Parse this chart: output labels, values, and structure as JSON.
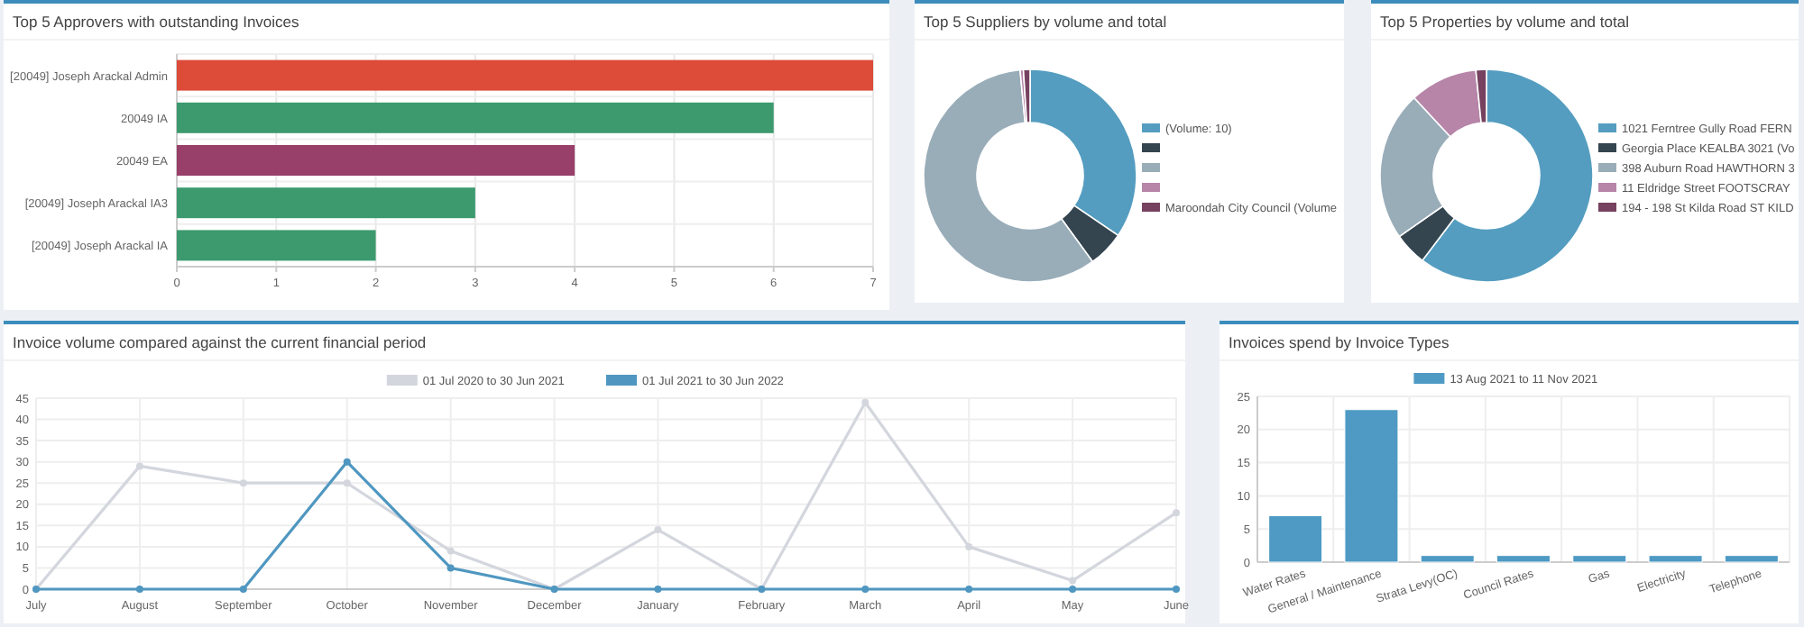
{
  "chart_data": [
    {
      "type": "bar",
      "orientation": "horizontal",
      "title": "Top 5 Approvers with outstanding Invoices",
      "categories": [
        "[20049] Joseph Arackal Admin",
        "20049 IA",
        "20049 EA",
        "[20049] Joseph Arackal IA3",
        "[20049] Joseph Arackal IA"
      ],
      "values": [
        7,
        6,
        4,
        3,
        2
      ],
      "colors": [
        "#dd4b39",
        "#3c9a6e",
        "#983f6a",
        "#3c9a6e",
        "#3c9a6e"
      ],
      "xlim": [
        0,
        7
      ],
      "xticks": [
        0,
        1,
        2,
        3,
        4,
        5,
        6,
        7
      ],
      "grid": true
    },
    {
      "type": "donut",
      "title": "Top 5 Suppliers by volume and total",
      "categories": [
        "(Volume: 10)",
        null,
        null,
        null,
        "Maroondah City Council (Volume"
      ],
      "values": [
        34.5,
        5.5,
        58.5,
        0.5,
        1.0
      ],
      "colors": [
        "#549dc0",
        "#344550",
        "#99adb9",
        "#b685a8",
        "#76425f"
      ],
      "legend": "right"
    },
    {
      "type": "donut",
      "title": "Top 5 Properties by volume and total",
      "categories": [
        "1021 Ferntree Gully Road FERN",
        "Georgia Place KEALBA 3021 (Vo",
        "398 Auburn Road HAWTHORN 3",
        "11 Eldridge Street FOOTSCRAY",
        "194 - 198 St Kilda Road ST KILD"
      ],
      "values": [
        60.3,
        5.0,
        22.8,
        10.3,
        1.6
      ],
      "colors": [
        "#549dc0",
        "#344550",
        "#99adb9",
        "#b685a8",
        "#76425f"
      ],
      "legend": "right"
    },
    {
      "type": "line",
      "title": "Invoice volume compared against the current financial period",
      "categories": [
        "July",
        "August",
        "September",
        "October",
        "November",
        "December",
        "January",
        "February",
        "March",
        "April",
        "May",
        "June"
      ],
      "series": [
        {
          "name": "01 Jul 2020 to 30 Jun 2021",
          "color": "#d4d6de",
          "values": [
            0,
            29,
            25,
            25,
            9,
            0,
            14,
            0,
            44,
            10,
            2,
            18
          ]
        },
        {
          "name": "01 Jul 2021 to 30 Jun 2022",
          "color": "#4f97c0",
          "values": [
            0,
            0,
            0,
            30,
            5,
            0,
            0,
            0,
            0,
            0,
            0,
            0
          ]
        }
      ],
      "ylim": [
        0,
        45
      ],
      "yticks": [
        0,
        5,
        10,
        15,
        20,
        25,
        30,
        35,
        40,
        45
      ],
      "grid": true,
      "legend": "top",
      "marker": "circle",
      "line_style": "solid"
    },
    {
      "type": "bar",
      "title": "Invoices spend by Invoice Types",
      "categories": [
        "Water Rates",
        "General / Maintenance",
        "Strata Levy(OC)",
        "Council Rates",
        "Gas",
        "Electricity",
        "Telephone"
      ],
      "series": [
        {
          "name": "13 Aug 2021 to 11 Nov 2021",
          "color": "#4e9ac4",
          "values": [
            7,
            23,
            1,
            1,
            1,
            1,
            1
          ]
        }
      ],
      "ylim": [
        0,
        25
      ],
      "yticks": [
        0,
        5,
        10,
        15,
        20,
        25
      ],
      "grid": true,
      "legend": "top"
    }
  ]
}
